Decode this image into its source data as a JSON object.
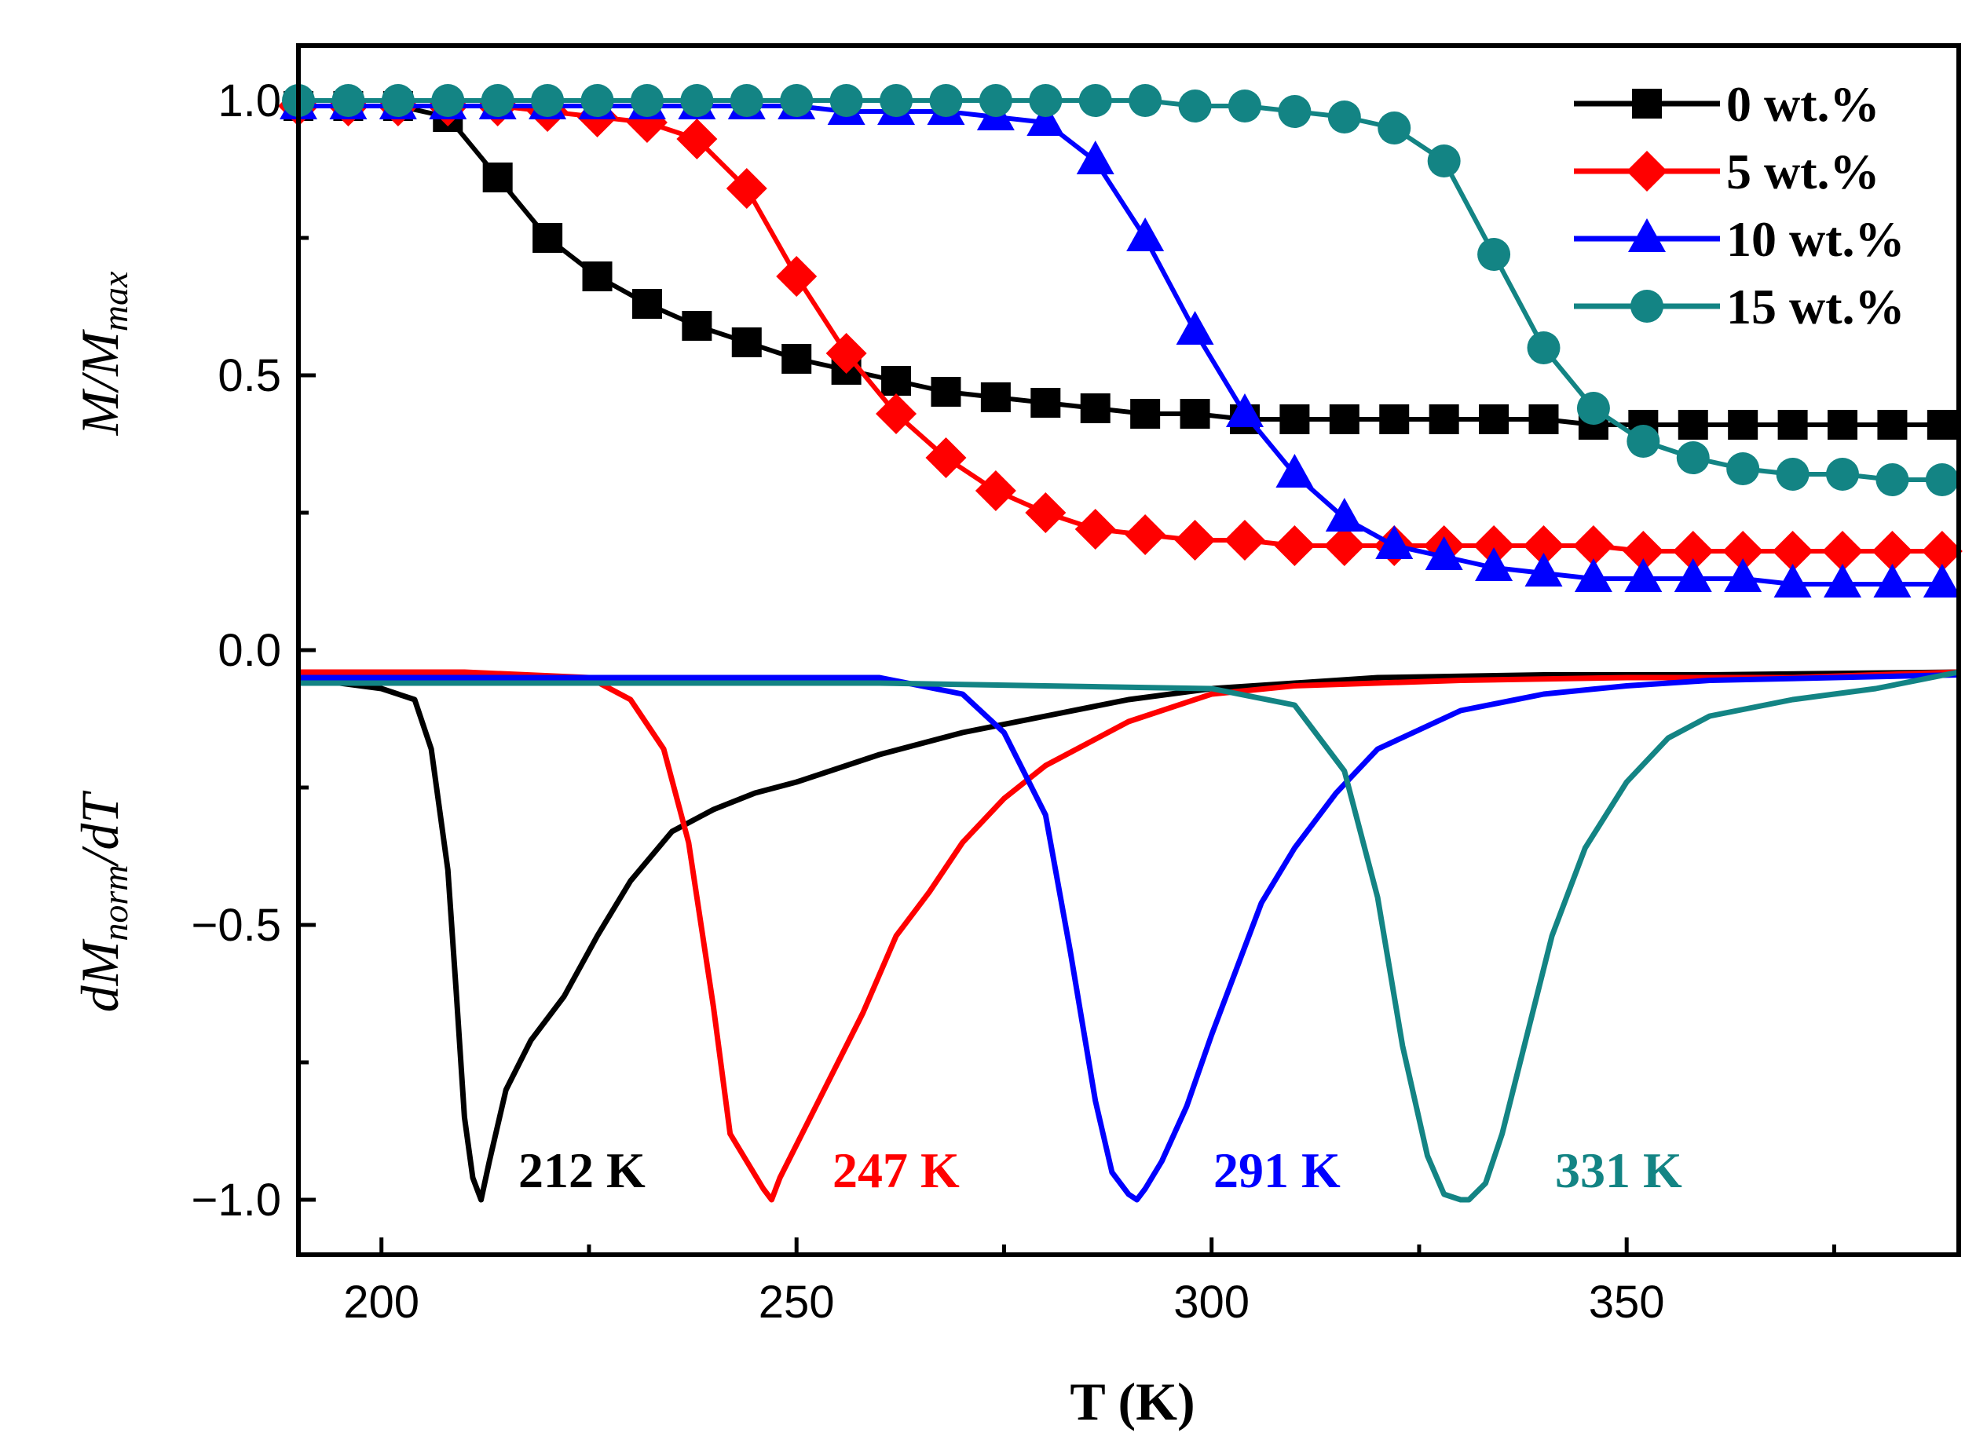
{
  "chart_data": {
    "type": "line",
    "title": "",
    "xlabel": "T (K)",
    "ylabel_top": {
      "main": "M/M",
      "sub": "max"
    },
    "ylabel_bottom": {
      "pre": "dM",
      "sub": "norm",
      "post": "/dT"
    },
    "xlim": [
      190,
      390
    ],
    "ylim": [
      -1.1,
      1.1
    ],
    "xticks": [
      200,
      250,
      300,
      350
    ],
    "yticks": [
      -1.0,
      -0.5,
      0.0,
      0.5,
      1.0
    ],
    "xtick_labels": [
      "200",
      "250",
      "300",
      "350"
    ],
    "ytick_labels": [
      "−1.0",
      "−0.5",
      "0.0",
      "0.5",
      "1.0"
    ],
    "legend_location": "top-right",
    "series": [
      {
        "name": "0 wt.%",
        "color": "#000000",
        "marker": "square",
        "magnetization": {
          "x": [
            190,
            196,
            202,
            208,
            214,
            220,
            226,
            232,
            238,
            244,
            250,
            256,
            262,
            268,
            274,
            280,
            286,
            292,
            298,
            304,
            310,
            316,
            322,
            328,
            334,
            340,
            346,
            352,
            358,
            364,
            370,
            376,
            382,
            388
          ],
          "y": [
            0.99,
            0.99,
            0.99,
            0.97,
            0.86,
            0.75,
            0.68,
            0.63,
            0.59,
            0.56,
            0.53,
            0.51,
            0.49,
            0.47,
            0.46,
            0.45,
            0.44,
            0.43,
            0.43,
            0.42,
            0.42,
            0.42,
            0.42,
            0.42,
            0.42,
            0.42,
            0.41,
            0.41,
            0.41,
            0.41,
            0.41,
            0.41,
            0.41,
            0.41
          ]
        },
        "derivative": {
          "x": [
            190,
            195,
            200,
            204,
            206,
            208,
            209,
            210,
            211,
            212,
            213,
            215,
            218,
            222,
            226,
            230,
            235,
            240,
            245,
            250,
            260,
            270,
            280,
            290,
            300,
            320,
            340,
            360,
            390
          ],
          "y": [
            -0.05,
            -0.06,
            -0.07,
            -0.09,
            -0.18,
            -0.4,
            -0.62,
            -0.85,
            -0.96,
            -1.0,
            -0.93,
            -0.8,
            -0.71,
            -0.63,
            -0.52,
            -0.42,
            -0.33,
            -0.29,
            -0.26,
            -0.24,
            -0.19,
            -0.15,
            -0.12,
            -0.09,
            -0.07,
            -0.05,
            -0.045,
            -0.045,
            -0.04
          ]
        },
        "peak_label": "212 K"
      },
      {
        "name": "5 wt.%",
        "color": "#ff0000",
        "marker": "diamond",
        "magnetization": {
          "x": [
            190,
            196,
            202,
            208,
            214,
            220,
            226,
            232,
            238,
            244,
            250,
            256,
            262,
            268,
            274,
            280,
            286,
            292,
            298,
            304,
            310,
            316,
            322,
            328,
            334,
            340,
            346,
            352,
            358,
            364,
            370,
            376,
            382,
            388
          ],
          "y": [
            0.99,
            0.99,
            0.99,
            0.99,
            0.99,
            0.98,
            0.97,
            0.96,
            0.93,
            0.84,
            0.68,
            0.54,
            0.43,
            0.35,
            0.29,
            0.25,
            0.22,
            0.21,
            0.2,
            0.2,
            0.19,
            0.19,
            0.19,
            0.19,
            0.19,
            0.19,
            0.19,
            0.18,
            0.18,
            0.18,
            0.18,
            0.18,
            0.18,
            0.18
          ]
        },
        "derivative": {
          "x": [
            190,
            210,
            225,
            230,
            234,
            237,
            240,
            242,
            244,
            246,
            247,
            248,
            250,
            254,
            258,
            262,
            266,
            270,
            275,
            280,
            290,
            300,
            310,
            330,
            350,
            370,
            390
          ],
          "y": [
            -0.04,
            -0.04,
            -0.05,
            -0.09,
            -0.18,
            -0.35,
            -0.65,
            -0.88,
            -0.93,
            -0.98,
            -1.0,
            -0.96,
            -0.9,
            -0.78,
            -0.66,
            -0.52,
            -0.44,
            -0.35,
            -0.27,
            -0.21,
            -0.13,
            -0.08,
            -0.065,
            -0.055,
            -0.05,
            -0.05,
            -0.04
          ]
        },
        "peak_label": "247 K"
      },
      {
        "name": "10 wt.%",
        "color": "#0000ff",
        "marker": "triangle",
        "magnetization": {
          "x": [
            190,
            196,
            202,
            208,
            214,
            220,
            226,
            232,
            238,
            244,
            250,
            256,
            262,
            268,
            274,
            280,
            286,
            292,
            298,
            304,
            310,
            316,
            322,
            328,
            334,
            340,
            346,
            352,
            358,
            364,
            370,
            376,
            382,
            388
          ],
          "y": [
            0.99,
            0.99,
            0.99,
            0.99,
            0.99,
            0.99,
            0.99,
            0.99,
            0.99,
            0.99,
            0.99,
            0.98,
            0.98,
            0.98,
            0.97,
            0.96,
            0.89,
            0.75,
            0.58,
            0.43,
            0.32,
            0.24,
            0.19,
            0.17,
            0.15,
            0.14,
            0.13,
            0.13,
            0.13,
            0.13,
            0.12,
            0.12,
            0.12,
            0.12
          ]
        },
        "derivative": {
          "x": [
            190,
            230,
            260,
            270,
            275,
            280,
            283,
            286,
            288,
            290,
            291,
            292,
            294,
            297,
            300,
            303,
            306,
            310,
            315,
            320,
            330,
            340,
            350,
            360,
            375,
            390
          ],
          "y": [
            -0.05,
            -0.05,
            -0.05,
            -0.08,
            -0.15,
            -0.3,
            -0.55,
            -0.82,
            -0.95,
            -0.99,
            -1.0,
            -0.98,
            -0.93,
            -0.83,
            -0.7,
            -0.58,
            -0.46,
            -0.36,
            -0.26,
            -0.18,
            -0.11,
            -0.08,
            -0.065,
            -0.055,
            -0.05,
            -0.045
          ]
        },
        "peak_label": "291 K"
      },
      {
        "name": "15 wt.%",
        "color": "#138484",
        "marker": "circle",
        "magnetization": {
          "x": [
            190,
            196,
            202,
            208,
            214,
            220,
            226,
            232,
            238,
            244,
            250,
            256,
            262,
            268,
            274,
            280,
            286,
            292,
            298,
            304,
            310,
            316,
            322,
            328,
            334,
            340,
            346,
            352,
            358,
            364,
            370,
            376,
            382,
            388
          ],
          "y": [
            1.0,
            1.0,
            1.0,
            1.0,
            1.0,
            1.0,
            1.0,
            1.0,
            1.0,
            1.0,
            1.0,
            1.0,
            1.0,
            1.0,
            1.0,
            1.0,
            1.0,
            1.0,
            0.99,
            0.99,
            0.98,
            0.97,
            0.95,
            0.89,
            0.72,
            0.55,
            0.44,
            0.38,
            0.35,
            0.33,
            0.32,
            0.32,
            0.31,
            0.31
          ]
        },
        "derivative": {
          "x": [
            190,
            260,
            300,
            310,
            316,
            320,
            323,
            326,
            328,
            330,
            331,
            333,
            335,
            338,
            341,
            345,
            350,
            355,
            360,
            370,
            380,
            390
          ],
          "y": [
            -0.06,
            -0.06,
            -0.07,
            -0.1,
            -0.22,
            -0.45,
            -0.72,
            -0.92,
            -0.99,
            -1.0,
            -1.0,
            -0.97,
            -0.88,
            -0.7,
            -0.52,
            -0.36,
            -0.24,
            -0.16,
            -0.12,
            -0.09,
            -0.07,
            -0.04
          ]
        },
        "peak_label": "331 K"
      }
    ]
  }
}
